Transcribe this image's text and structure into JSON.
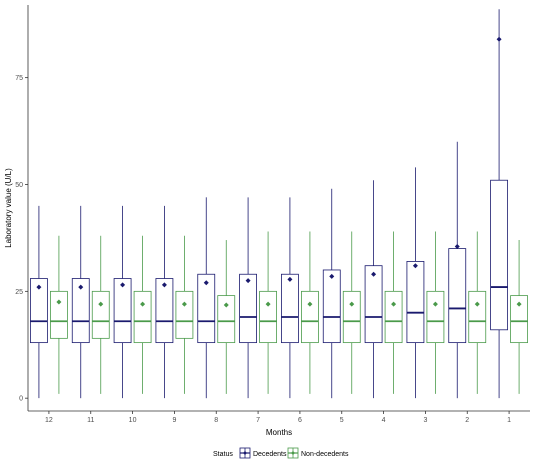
{
  "chart_data": {
    "type": "boxplot",
    "title": "",
    "xlabel": "Months",
    "ylabel": "Laboratory value (U/L)",
    "ylim": [
      -3,
      92
    ],
    "yticks": [
      0,
      25,
      50,
      75
    ],
    "categories": [
      "12",
      "11",
      "10",
      "9",
      "8",
      "7",
      "6",
      "5",
      "4",
      "3",
      "2",
      "1"
    ],
    "grid": false,
    "legend": {
      "title": "Status",
      "position": "bottom",
      "entries": [
        "Decedents",
        "Non-decedents"
      ]
    },
    "series": [
      {
        "name": "Decedents",
        "color": "#1a1a6e",
        "whisker_low": [
          0,
          0,
          0,
          0,
          0,
          0,
          0,
          0,
          0,
          0,
          0,
          0
        ],
        "q1": [
          13,
          13,
          13,
          13,
          13,
          13,
          13,
          13,
          13,
          13,
          13,
          16
        ],
        "median": [
          18,
          18,
          18,
          18,
          18,
          19,
          19,
          19,
          19,
          20,
          21,
          26
        ],
        "q3": [
          28,
          28,
          28,
          28,
          29,
          29,
          29,
          30,
          31,
          32,
          35,
          51
        ],
        "whisker_high": [
          45,
          45,
          45,
          45,
          47,
          47,
          47,
          49,
          51,
          54,
          60,
          91
        ],
        "mean": [
          26,
          26,
          26.5,
          26.5,
          27,
          27.5,
          27.8,
          28.5,
          29,
          31,
          35.5,
          84
        ]
      },
      {
        "name": "Non-decedents",
        "color": "#4a9a4a",
        "whisker_low": [
          1,
          1,
          1,
          1,
          1,
          1,
          1,
          1,
          1,
          1,
          1,
          1
        ],
        "q1": [
          14,
          14,
          13,
          14,
          13,
          13,
          13,
          13,
          13,
          13,
          13,
          13
        ],
        "median": [
          18,
          18,
          18,
          18,
          18,
          18,
          18,
          18,
          18,
          18,
          18,
          18
        ],
        "q3": [
          25,
          25,
          25,
          25,
          24,
          25,
          25,
          25,
          25,
          25,
          25,
          24
        ],
        "whisker_high": [
          38,
          38,
          38,
          38,
          37,
          39,
          39,
          39,
          39,
          39,
          39,
          37
        ],
        "mean": [
          22.5,
          22,
          22,
          22,
          21.8,
          22,
          22,
          22,
          22,
          22,
          22,
          22
        ]
      }
    ]
  }
}
